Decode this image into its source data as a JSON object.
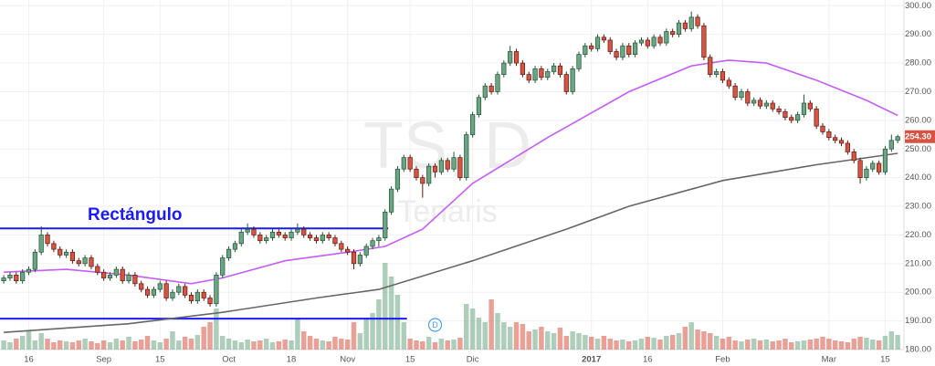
{
  "chart_data": {
    "type": "candlestick",
    "title": "TS, D",
    "subtitle": "Tenaris",
    "annotation": "Rectángulo",
    "xlim": [
      -0.6,
      144
    ],
    "ylim": [
      180,
      302
    ],
    "yticks": [
      {
        "value": 180,
        "label": "180.00"
      },
      {
        "value": 190,
        "label": "190.00"
      },
      {
        "value": 200,
        "label": "200.00"
      },
      {
        "value": 210,
        "label": "210.00"
      },
      {
        "value": 220,
        "label": "220.00"
      },
      {
        "value": 230,
        "label": "230.00"
      },
      {
        "value": 240,
        "label": "240.00"
      },
      {
        "value": 250,
        "label": "250.00"
      },
      {
        "value": 260,
        "label": "260.00"
      },
      {
        "value": 270,
        "label": "270.00"
      },
      {
        "value": 280,
        "label": "280.00"
      },
      {
        "value": 290,
        "label": "290.00"
      },
      {
        "value": 300,
        "label": "300.00"
      }
    ],
    "xticks": [
      {
        "value": 4,
        "label": "16"
      },
      {
        "value": 16,
        "label": "Sep"
      },
      {
        "value": 25,
        "label": "15"
      },
      {
        "value": 36,
        "label": "Oct"
      },
      {
        "value": 46,
        "label": "18"
      },
      {
        "value": 55,
        "label": "Nov"
      },
      {
        "value": 65,
        "label": "15"
      },
      {
        "value": 75,
        "label": "Dic"
      },
      {
        "value": 94,
        "label": "2017",
        "bold": true
      },
      {
        "value": 103,
        "label": "16"
      },
      {
        "value": 115,
        "label": "Feb"
      },
      {
        "value": 132,
        "label": "Mar"
      },
      {
        "value": 141,
        "label": "15"
      }
    ],
    "grid": true,
    "up_color": "#6ba583",
    "down_color": "#d75442",
    "ohlc": [
      [
        204,
        206,
        203,
        205
      ],
      [
        205,
        207,
        204,
        206
      ],
      [
        206,
        207,
        203,
        204
      ],
      [
        204,
        208,
        203,
        207
      ],
      [
        207,
        209,
        206,
        208
      ],
      [
        208,
        215,
        207,
        214
      ],
      [
        214,
        223,
        213,
        220
      ],
      [
        220,
        221,
        216,
        217
      ],
      [
        217,
        218,
        214,
        215
      ],
      [
        215,
        216,
        212,
        213
      ],
      [
        213,
        215,
        212,
        214
      ],
      [
        214,
        215,
        210,
        211
      ],
      [
        211,
        212,
        209,
        210
      ],
      [
        210,
        213,
        209,
        212
      ],
      [
        212,
        213,
        208,
        209
      ],
      [
        209,
        210,
        206,
        207
      ],
      [
        207,
        208,
        204,
        205
      ],
      [
        205,
        207,
        204,
        206
      ],
      [
        206,
        209,
        205,
        208
      ],
      [
        208,
        209,
        203,
        204
      ],
      [
        204,
        207,
        203,
        206
      ],
      [
        206,
        207,
        202,
        203
      ],
      [
        203,
        204,
        200,
        201
      ],
      [
        201,
        202,
        198,
        199
      ],
      [
        199,
        202,
        198,
        201
      ],
      [
        201,
        204,
        200,
        203
      ],
      [
        203,
        204,
        197,
        198
      ],
      [
        198,
        201,
        197,
        200
      ],
      [
        200,
        203,
        199,
        202
      ],
      [
        202,
        203,
        198,
        199
      ],
      [
        199,
        200,
        196,
        197
      ],
      [
        197,
        201,
        196,
        200
      ],
      [
        200,
        201,
        197,
        198
      ],
      [
        198,
        199,
        195,
        196
      ],
      [
        196,
        207,
        195,
        206
      ],
      [
        206,
        213,
        205,
        212
      ],
      [
        212,
        216,
        211,
        215
      ],
      [
        215,
        218,
        214,
        217
      ],
      [
        217,
        222,
        216,
        221
      ],
      [
        221,
        224,
        220,
        222
      ],
      [
        222,
        223,
        219,
        220
      ],
      [
        220,
        221,
        217,
        218
      ],
      [
        218,
        220,
        217,
        219
      ],
      [
        219,
        222,
        218,
        221
      ],
      [
        221,
        222,
        219,
        220
      ],
      [
        220,
        221,
        218,
        219
      ],
      [
        219,
        222,
        218,
        221
      ],
      [
        221,
        224,
        220,
        222
      ],
      [
        222,
        223,
        219,
        220
      ],
      [
        220,
        221,
        218,
        219
      ],
      [
        219,
        220,
        217,
        218
      ],
      [
        218,
        221,
        217,
        220
      ],
      [
        220,
        221,
        218,
        219
      ],
      [
        219,
        220,
        216,
        217
      ],
      [
        217,
        218,
        214,
        215
      ],
      [
        215,
        216,
        213,
        214
      ],
      [
        214,
        215,
        208,
        210
      ],
      [
        210,
        214,
        209,
        213
      ],
      [
        213,
        217,
        212,
        216
      ],
      [
        216,
        219,
        215,
        218
      ],
      [
        218,
        220,
        216,
        219
      ],
      [
        219,
        229,
        218,
        228
      ],
      [
        228,
        237,
        227,
        236
      ],
      [
        236,
        244,
        235,
        243
      ],
      [
        243,
        248,
        242,
        247
      ],
      [
        247,
        248,
        242,
        243
      ],
      [
        243,
        244,
        239,
        240
      ],
      [
        240,
        241,
        233,
        238
      ],
      [
        238,
        245,
        237,
        244
      ],
      [
        244,
        245,
        240,
        242
      ],
      [
        242,
        247,
        241,
        246
      ],
      [
        246,
        247,
        242,
        243
      ],
      [
        243,
        249,
        242,
        247
      ],
      [
        247,
        248,
        239,
        240
      ],
      [
        240,
        256,
        239,
        255
      ],
      [
        255,
        263,
        254,
        262
      ],
      [
        262,
        269,
        261,
        268
      ],
      [
        268,
        273,
        267,
        272
      ],
      [
        272,
        273,
        269,
        270
      ],
      [
        270,
        277,
        269,
        276
      ],
      [
        276,
        281,
        275,
        280
      ],
      [
        280,
        286,
        279,
        284
      ],
      [
        284,
        285,
        279,
        280
      ],
      [
        280,
        281,
        275,
        276
      ],
      [
        276,
        277,
        273,
        274
      ],
      [
        274,
        279,
        273,
        278
      ],
      [
        278,
        279,
        274,
        275
      ],
      [
        275,
        278,
        274,
        277
      ],
      [
        277,
        280,
        276,
        279
      ],
      [
        279,
        280,
        275,
        276
      ],
      [
        276,
        277,
        269,
        270
      ],
      [
        270,
        279,
        269,
        278
      ],
      [
        278,
        284,
        277,
        283
      ],
      [
        283,
        287,
        282,
        286
      ],
      [
        286,
        287,
        284,
        285
      ],
      [
        285,
        290,
        284,
        289
      ],
      [
        289,
        290,
        287,
        288
      ],
      [
        288,
        289,
        283,
        284
      ],
      [
        284,
        285,
        281,
        282
      ],
      [
        282,
        287,
        281,
        286
      ],
      [
        286,
        287,
        282,
        283
      ],
      [
        283,
        288,
        282,
        287
      ],
      [
        287,
        289,
        286,
        288
      ],
      [
        288,
        289,
        285,
        286
      ],
      [
        286,
        290,
        285,
        289
      ],
      [
        289,
        290,
        286,
        287
      ],
      [
        287,
        292,
        286,
        291
      ],
      [
        291,
        292,
        289,
        290
      ],
      [
        290,
        295,
        289,
        294
      ],
      [
        294,
        295,
        291,
        292
      ],
      [
        292,
        298,
        291,
        296
      ],
      [
        296,
        297,
        292,
        293
      ],
      [
        293,
        294,
        281,
        282
      ],
      [
        282,
        283,
        275,
        276
      ],
      [
        276,
        278,
        275,
        277
      ],
      [
        277,
        278,
        273,
        274
      ],
      [
        274,
        275,
        271,
        272
      ],
      [
        272,
        273,
        267,
        268
      ],
      [
        268,
        271,
        267,
        270
      ],
      [
        270,
        271,
        265,
        266
      ],
      [
        266,
        268,
        265,
        267
      ],
      [
        267,
        268,
        264,
        265
      ],
      [
        265,
        267,
        264,
        266
      ],
      [
        266,
        267,
        263,
        264
      ],
      [
        264,
        265,
        262,
        263
      ],
      [
        263,
        264,
        260,
        261
      ],
      [
        261,
        262,
        259,
        260
      ],
      [
        260,
        263,
        259,
        262
      ],
      [
        262,
        269,
        261,
        266
      ],
      [
        266,
        267,
        263,
        264
      ],
      [
        264,
        265,
        257,
        258
      ],
      [
        258,
        259,
        255,
        256
      ],
      [
        256,
        257,
        253,
        254
      ],
      [
        254,
        255,
        252,
        253
      ],
      [
        253,
        254,
        251,
        252
      ],
      [
        252,
        253,
        248,
        249
      ],
      [
        249,
        250,
        245,
        246
      ],
      [
        246,
        247,
        238,
        240
      ],
      [
        240,
        244,
        239,
        243
      ],
      [
        243,
        246,
        242,
        245
      ],
      [
        245,
        246,
        241,
        242
      ],
      [
        242,
        251,
        241,
        250
      ],
      [
        250,
        255,
        249,
        253
      ],
      [
        253,
        255,
        252,
        254.3
      ]
    ],
    "volume": [
      10,
      8,
      12,
      15,
      20,
      10,
      18,
      12,
      8,
      10,
      9,
      8,
      10,
      12,
      9,
      7,
      10,
      8,
      12,
      10,
      14,
      9,
      11,
      15,
      10,
      8,
      12,
      20,
      10,
      14,
      12,
      16,
      25,
      30,
      45,
      15,
      12,
      10,
      8,
      11,
      9,
      10,
      12,
      8,
      9,
      11,
      10,
      35,
      20,
      15,
      12,
      10,
      9,
      14,
      12,
      11,
      30,
      18,
      35,
      40,
      55,
      95,
      80,
      60,
      30,
      12,
      10,
      9,
      14,
      8,
      12,
      10,
      11,
      13,
      50,
      45,
      35,
      30,
      55,
      40,
      30,
      25,
      30,
      28,
      20,
      22,
      25,
      20,
      18,
      24,
      15,
      20,
      18,
      16,
      14,
      12,
      15,
      12,
      10,
      11,
      9,
      10,
      12,
      14,
      13,
      11,
      15,
      16,
      18,
      25,
      30,
      22,
      20,
      18,
      15,
      12,
      14,
      10,
      9,
      11,
      12,
      10,
      11,
      9,
      10,
      12,
      8,
      9,
      10,
      11,
      12,
      14,
      12,
      10,
      9,
      8,
      12,
      14,
      13,
      11,
      10,
      15,
      20,
      16
    ],
    "series": [
      {
        "color": "#c45ef5",
        "x": [
          0,
          10,
          20,
          30,
          35,
          45,
          55,
          61,
          67,
          75,
          87,
          100,
          110,
          116,
          122,
          130,
          138,
          143
        ],
        "values": [
          207,
          208,
          206,
          203,
          205,
          211,
          214,
          216,
          222,
          238,
          254,
          270,
          279,
          281,
          280,
          274,
          267,
          261.7
        ]
      },
      {
        "color": "#666666",
        "x": [
          0,
          20,
          35,
          50,
          60,
          75,
          90,
          100,
          115,
          130,
          143
        ],
        "values": [
          186,
          189,
          193,
          198,
          201,
          211,
          222,
          230,
          239,
          244.5,
          248.5
        ]
      }
    ],
    "levels": [
      {
        "value": 222.3,
        "color": "#1a1aff"
      },
      {
        "value": 190.8,
        "color": "#1a1aff"
      }
    ],
    "events": [
      {
        "index": 69,
        "label": "D"
      }
    ],
    "last_price": {
      "value": 254.3,
      "label": "254.30"
    }
  }
}
